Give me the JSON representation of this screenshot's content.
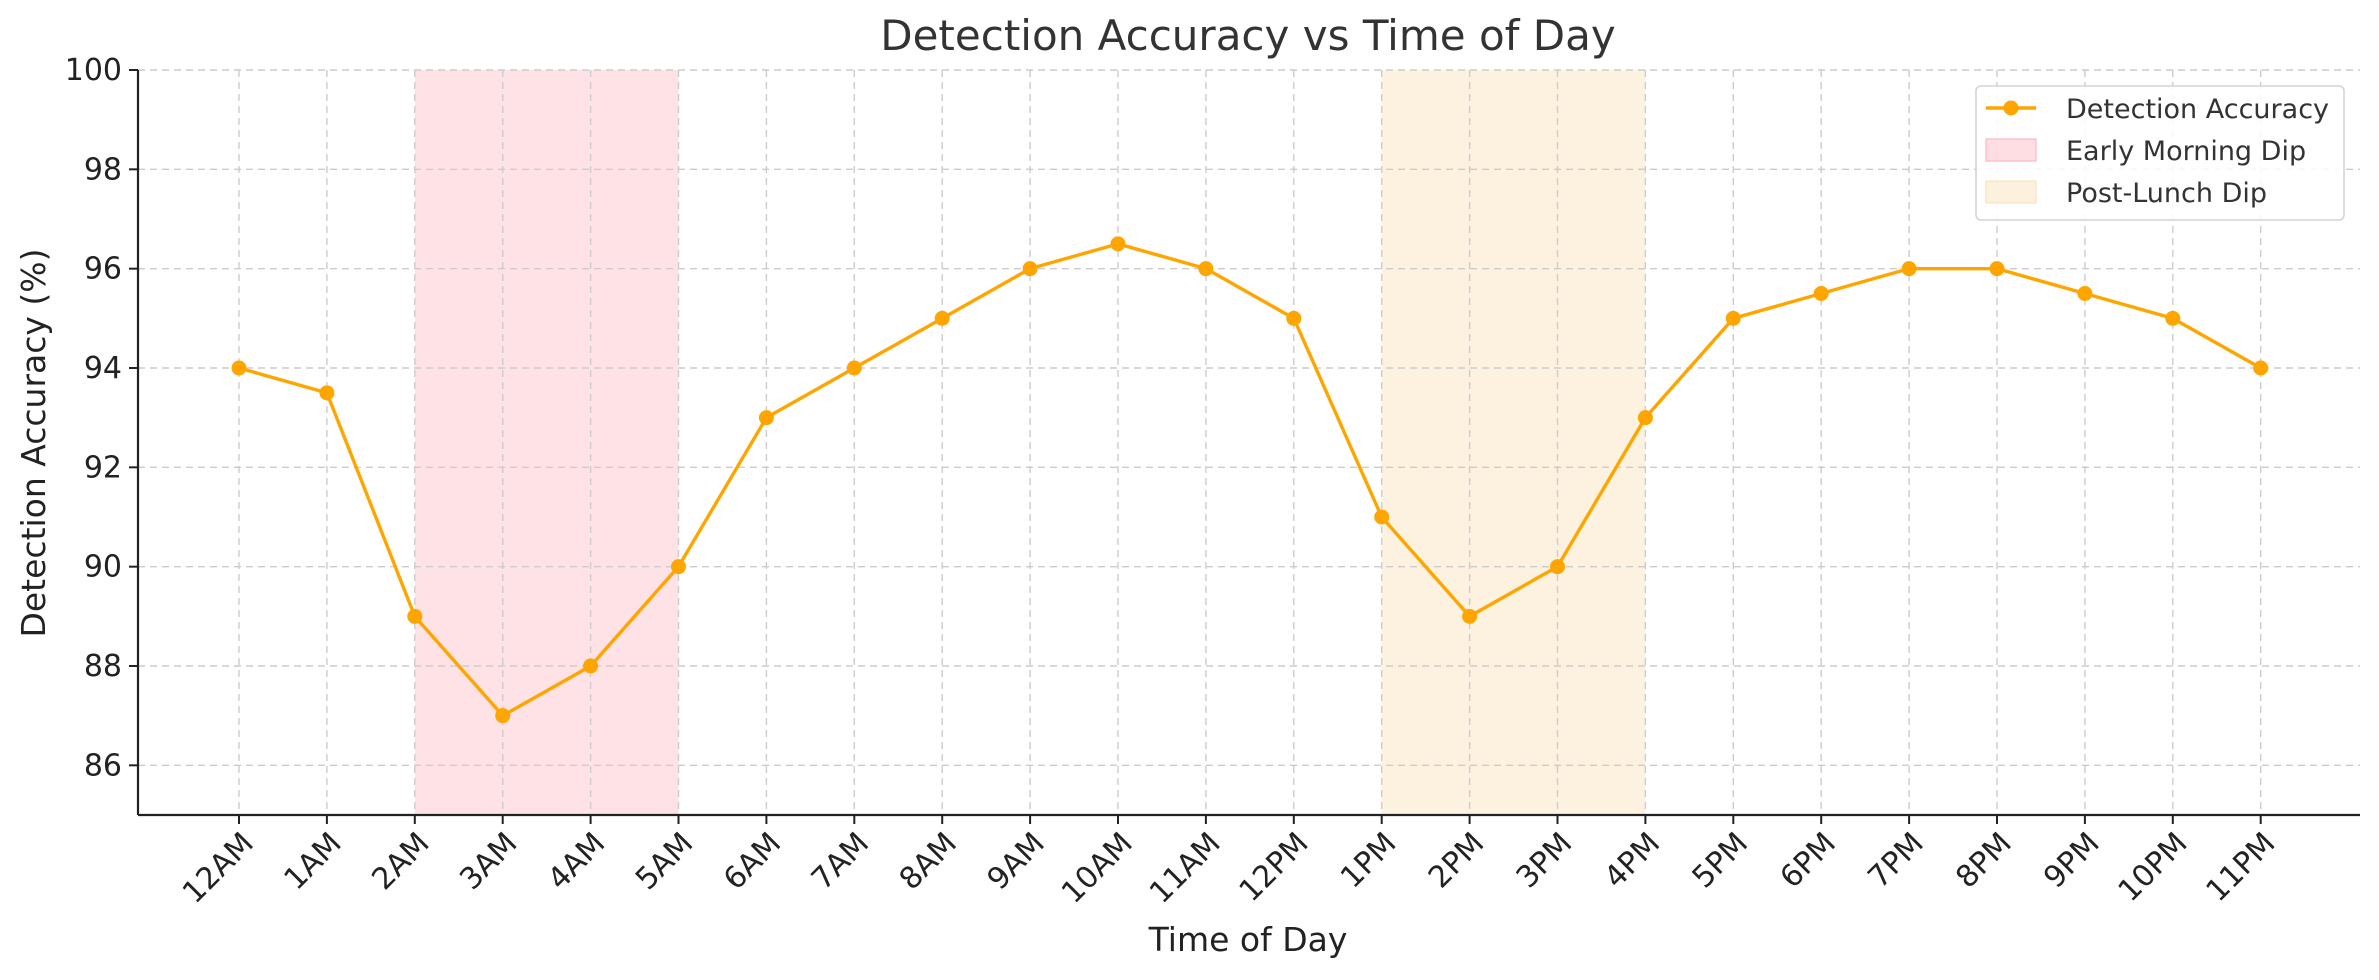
{
  "chart_data": {
    "type": "line",
    "title": "Detection Accuracy vs Time of Day",
    "xlabel": "Time of Day",
    "ylabel": "Detection Accuracy (%)",
    "categories": [
      "12AM",
      "1AM",
      "2AM",
      "3AM",
      "4AM",
      "5AM",
      "6AM",
      "7AM",
      "8AM",
      "9AM",
      "10AM",
      "11AM",
      "12PM",
      "1PM",
      "2PM",
      "3PM",
      "4PM",
      "5PM",
      "6PM",
      "7PM",
      "8PM",
      "9PM",
      "10PM",
      "11PM"
    ],
    "series": [
      {
        "name": "Detection Accuracy",
        "color": "#ffa500",
        "values": [
          94,
          93.5,
          89,
          87,
          88,
          90,
          93,
          94,
          95,
          96,
          96.5,
          96,
          95,
          91,
          89,
          90,
          93,
          95,
          95.5,
          96,
          96,
          95.5,
          95,
          94
        ]
      }
    ],
    "shaded_regions": [
      {
        "name": "Early Morning Dip",
        "from": "2AM",
        "to": "5AM",
        "color": "#ffb6c1"
      },
      {
        "name": "Post-Lunch Dip",
        "from": "1PM",
        "to": "4PM",
        "color": "#fae3bb"
      }
    ],
    "ylim": [
      85,
      100
    ],
    "yticks": [
      86,
      88,
      90,
      92,
      94,
      96,
      98,
      100
    ],
    "grid": true,
    "legend_position": "top-right"
  }
}
